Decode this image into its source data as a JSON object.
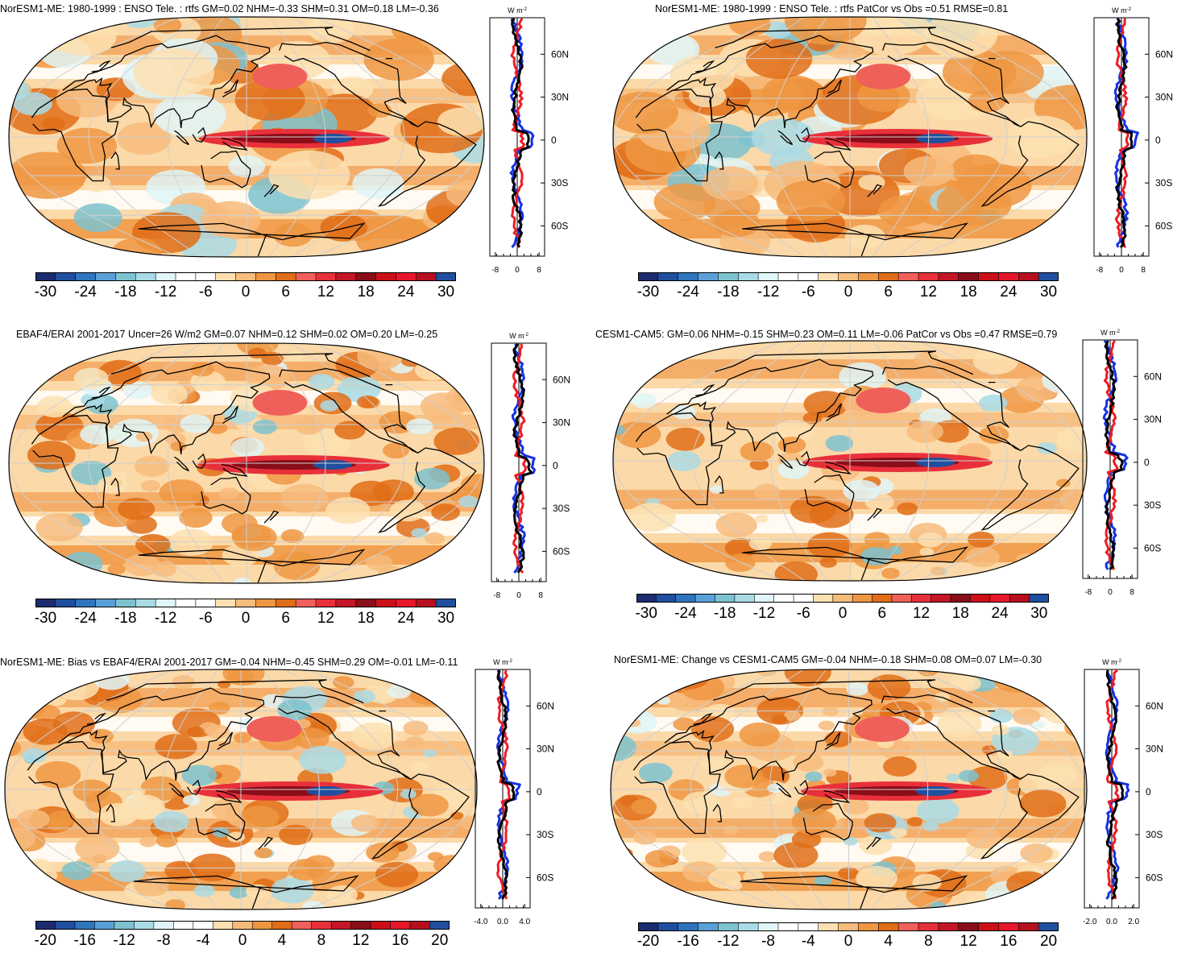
{
  "colors": {
    "scale": [
      "#1c2c6e",
      "#1f4f9e",
      "#2f74bf",
      "#5aa0d8",
      "#7dc2cf",
      "#a9dbe6",
      "#e0f5f7",
      "#ffffff",
      "#ffffff",
      "#fde0b2",
      "#f7bb7c",
      "#ef9642",
      "#e06d17",
      "#f0605a",
      "#e8303a",
      "#c31626",
      "#8a0d1a",
      "#cc1018",
      "#e5172a",
      "#b80f1e",
      "#1f4f9e"
    ],
    "land_outline": "#000000",
    "grid": "#cfcfcf",
    "series_blue": "#1530e6",
    "series_red": "#ee1c24",
    "series_black": "#000000"
  },
  "panels": [
    {
      "id": "p1",
      "title": "NorESM1-ME: 1980-1999 : ENSO Tele. : rtfs GM=0.02 NHM=-0.33 SHM=0.31 OM=0.18 LM=-0.36",
      "unit": "W m-2",
      "zonal_xticks": [
        "-8",
        "0",
        "8"
      ],
      "zonal_xrange": [
        -10,
        10
      ],
      "zonal_yticks": [
        "60N",
        "30N",
        "0",
        "30S",
        "60S"
      ],
      "colorbar_labels": [
        "-30",
        "-24",
        "-18",
        "-12",
        "-6",
        "0",
        "6",
        "12",
        "18",
        "24",
        "30"
      ]
    },
    {
      "id": "p2",
      "title": "NorESM1-ME: 1980-1999 : ENSO Tele. : rtfs PatCor vs Obs =0.51 RMSE=0.81",
      "unit": "W m-2",
      "zonal_xticks": [
        "-8",
        "0",
        "8"
      ],
      "zonal_xrange": [
        -10,
        10
      ],
      "zonal_yticks": [
        "60N",
        "30N",
        "0",
        "30S",
        "60S"
      ],
      "colorbar_labels": [
        "-30",
        "-24",
        "-18",
        "-12",
        "-6",
        "0",
        "6",
        "12",
        "18",
        "24",
        "30"
      ]
    },
    {
      "id": "p3",
      "title": "EBAF4/ERAI 2001-2017 Uncer=26 W/m2 GM=0.07 NHM=0.12 SHM=0.02 OM=0.20 LM=-0.25",
      "unit": "W m-2",
      "zonal_xticks": [
        "-8",
        "0",
        "8"
      ],
      "zonal_xrange": [
        -10,
        10
      ],
      "zonal_yticks": [
        "60N",
        "30N",
        "0",
        "30S",
        "60S"
      ],
      "colorbar_labels": [
        "-30",
        "-24",
        "-18",
        "-12",
        "-6",
        "0",
        "6",
        "12",
        "18",
        "24",
        "30"
      ]
    },
    {
      "id": "p4",
      "title": "CESM1-CAM5: GM=0.06 NHM=-0.15 SHM=0.23 OM=0.11 LM=-0.06 PatCor vs Obs =0.47 RMSE=0.79",
      "unit": "W m-2",
      "zonal_xticks": [
        "-8",
        "0",
        "8"
      ],
      "zonal_xrange": [
        -10,
        10
      ],
      "zonal_yticks": [
        "60N",
        "30N",
        "0",
        "30S",
        "60S"
      ],
      "colorbar_labels": [
        "-30",
        "-24",
        "-18",
        "-12",
        "-6",
        "0",
        "6",
        "12",
        "18",
        "24",
        "30"
      ]
    },
    {
      "id": "p5",
      "title": "NorESM1-ME: Bias vs EBAF4/ERAI 2001-2017 GM=-0.04 NHM=-0.45 SHM=0.29 OM=-0.01 LM=-0.11",
      "unit": "W m-2",
      "zonal_xticks": [
        "-4.0",
        "0.0",
        "4.0"
      ],
      "zonal_xrange": [
        -5,
        5
      ],
      "zonal_yticks": [
        "60N",
        "30N",
        "0",
        "30S",
        "60S"
      ],
      "colorbar_labels": [
        "-20",
        "-16",
        "-12",
        "-8",
        "-4",
        "0",
        "4",
        "8",
        "12",
        "16",
        "20"
      ]
    },
    {
      "id": "p6",
      "title": "NorESM1-ME: Change vs CESM1-CAM5 GM=-0.04 NHM=-0.18 SHM=0.08 OM=0.07 LM=-0.30",
      "unit": "W m-2",
      "zonal_xticks": [
        "-2.0",
        "0.0",
        "2.0"
      ],
      "zonal_xrange": [
        -2.5,
        2.5
      ],
      "zonal_yticks": [
        "60N",
        "30N",
        "0",
        "30S",
        "60S"
      ],
      "colorbar_labels": [
        "-20",
        "-16",
        "-12",
        "-8",
        "-4",
        "0",
        "4",
        "8",
        "12",
        "16",
        "20"
      ]
    }
  ]
}
